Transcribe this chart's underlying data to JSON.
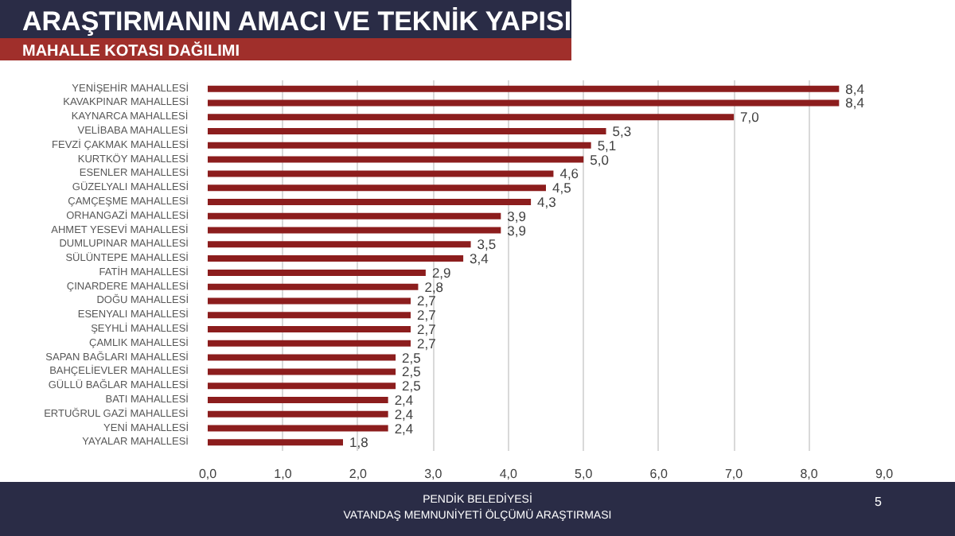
{
  "chart_data": {
    "type": "bar",
    "orientation": "horizontal",
    "title": "ARAŞTIRMANIN AMACI VE TEKNİK YAPISI",
    "subtitle": "MAHALLE KOTASI DAĞILIMI",
    "categories": [
      "YENİŞEHİR MAHALLESİ",
      "KAVAKPINAR MAHALLESİ",
      "KAYNARCA MAHALLESİ",
      "VELİBABA MAHALLESİ",
      "FEVZİ ÇAKMAK MAHALLESİ",
      "KURTKÖY MAHALLESİ",
      "ESENLER MAHALLESİ",
      "GÜZELYALI MAHALLESİ",
      "ÇAMÇEŞME MAHALLESİ",
      "ORHANGAZİ MAHALLESİ",
      "AHMET YESEVİ MAHALLESİ",
      "DUMLUPINAR MAHALLESİ",
      "SÜLÜNTEPE MAHALLESİ",
      "FATİH MAHALLESİ",
      "ÇINARDERE MAHALLESİ",
      "DOĞU MAHALLESİ",
      "ESENYALI MAHALLESİ",
      "ŞEYHLİ MAHALLESİ",
      "ÇAMLIK MAHALLESİ",
      "SAPAN BAĞLARI MAHALLESİ",
      "BAHÇELİEVLER MAHALLESİ",
      "GÜLLÜ BAĞLAR MAHALLESİ",
      "BATI MAHALLESİ",
      "ERTUĞRUL GAZİ MAHALLESİ",
      "YENİ MAHALLESİ",
      "YAYALAR MAHALLESİ"
    ],
    "values": [
      8.4,
      8.4,
      7.0,
      5.3,
      5.1,
      5.0,
      4.6,
      4.5,
      4.3,
      3.9,
      3.9,
      3.5,
      3.4,
      2.9,
      2.8,
      2.7,
      2.7,
      2.7,
      2.7,
      2.5,
      2.5,
      2.5,
      2.4,
      2.4,
      2.4,
      1.8
    ],
    "value_labels": [
      "8,4",
      "8,4",
      "7,0",
      "5,3",
      "5,1",
      "5,0",
      "4,6",
      "4,5",
      "4,3",
      "3,9",
      "3,9",
      "3,5",
      "3,4",
      "2,9",
      "2,8",
      "2,7",
      "2,7",
      "2,7",
      "2,7",
      "2,5",
      "2,5",
      "2,5",
      "2,4",
      "2,4",
      "2,4",
      "1,8"
    ],
    "color": "#8c1d1d",
    "xlim": [
      0,
      9
    ],
    "xticks": [
      {
        "value": 0,
        "label": "0,0"
      },
      {
        "value": 1,
        "label": "1,0"
      },
      {
        "value": 2,
        "label": "2,0"
      },
      {
        "value": 3,
        "label": "3,0"
      },
      {
        "value": 4,
        "label": "4,0"
      },
      {
        "value": 5,
        "label": "5,0"
      },
      {
        "value": 6,
        "label": "6,0"
      },
      {
        "value": 7,
        "label": "7,0"
      },
      {
        "value": 8,
        "label": "8,0"
      },
      {
        "value": 9,
        "label": "9,0"
      }
    ],
    "grid": "x",
    "annotations": [
      "PENDİK BELEDİYESİ",
      "VATANDAŞ MEMNUNİYETİ ÖLÇÜMÜ ARAŞTIRMASI",
      "5"
    ]
  }
}
